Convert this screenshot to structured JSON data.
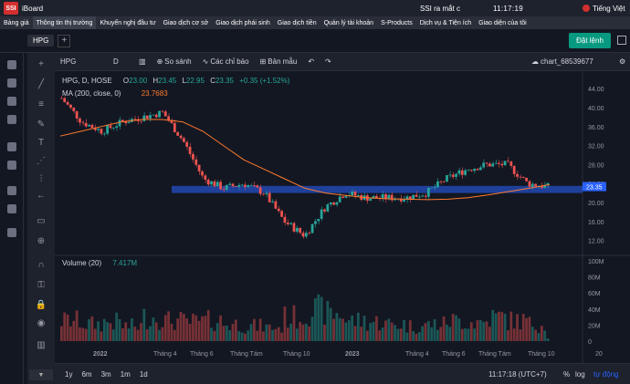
{
  "topbar": {
    "logo": "SSI",
    "app_name": "iBoard",
    "ticker": "SSI ra mắt c",
    "clock": "11:17:19",
    "language": "Tiếng Việt"
  },
  "menu": [
    "Bảng giá",
    "Thông tin thị trường",
    "Khuyến nghị đầu tư",
    "Giao dịch cơ sở",
    "Giao dịch phái sinh",
    "Giao dịch tiền",
    "Quản lý tài khoản",
    "S-Products",
    "Dịch vụ & Tiện ích",
    "Giao diện của tôi"
  ],
  "controls": {
    "tab": "HPG",
    "plus": "+",
    "order_button": "Đặt lệnh"
  },
  "chart_header": {
    "symbol": "HPG",
    "interval": "D",
    "compare": "So sánh",
    "alerts": "Các chỉ báo",
    "template": "Bản mẫu",
    "chart_name": "chart_68539677"
  },
  "legend": {
    "title": "HPG, D, HOSE",
    "o_label": "O",
    "o_value": "23.00",
    "h_label": "H",
    "h_value": "23.45",
    "l_label": "L",
    "l_value": "22.95",
    "c_label": "C",
    "c_value": "23.35",
    "change": "+0.35 (+1.52%)",
    "ma_label": "MA (200, close, 0)",
    "ma_value": "23.7683",
    "vol_label": "Volume (20)",
    "vol_value": "7.417M"
  },
  "bottom": {
    "timeframes": [
      "1y",
      "6m",
      "3m",
      "1m",
      "1d"
    ],
    "clock": "11:17:18 (UTC+7)",
    "percent": "%",
    "log": "log",
    "auto": "tự động"
  },
  "colors": {
    "up": "#26a69a",
    "down": "#ef5350",
    "ma": "#ff7b2e",
    "band": "#2962ff",
    "accent": "#089981"
  },
  "chart_data": {
    "type": "line",
    "x": [
      "2021-11",
      "2021-12",
      "2022-01",
      "2022-02",
      "2022-03",
      "2022-04",
      "2022-05",
      "2022-06",
      "2022-07",
      "2022-08",
      "2022-09",
      "2022-10",
      "2022-11",
      "2022-12",
      "2023-01",
      "2023-02",
      "2023-03",
      "2023-04",
      "2023-05",
      "2023-06",
      "2023-07",
      "2023-08",
      "2023-09",
      "2023-10",
      "2023-11"
    ],
    "series": [
      {
        "values": [
          42,
          37,
          35,
          37,
          38,
          39,
          33,
          25,
          23,
          24,
          22,
          16,
          13,
          19,
          22,
          21,
          21,
          21,
          22,
          25,
          27,
          28,
          28,
          24,
          23.35
        ]
      }
    ],
    "ma200": [
      34,
      35,
      36,
      37,
      37.5,
      37.5,
      37,
      35,
      32,
      29,
      27,
      25,
      23,
      22,
      21.5,
      21,
      20.8,
      20.7,
      20.6,
      20.7,
      21,
      21.6,
      22.3,
      23,
      23.77
    ],
    "volume_millions": [
      30,
      25,
      28,
      22,
      35,
      30,
      28,
      30,
      25,
      22,
      20,
      35,
      45,
      40,
      30,
      28,
      25,
      22,
      25,
      30,
      28,
      35,
      30,
      25,
      7.417
    ],
    "band": [
      22,
      23.5
    ],
    "y_ticks": [
      "44.00",
      "40.00",
      "36.00",
      "32.00",
      "28.00",
      "24.00",
      "20.00",
      "16.00",
      "12.00"
    ],
    "y_price_label": "23.35",
    "ylim": [
      10,
      45
    ],
    "vol_ticks": [
      "100M",
      "80M",
      "60M",
      "40M",
      "20M",
      "0"
    ],
    "x_ticks": [
      "2022",
      "Tháng 4",
      "Tháng 6",
      "Tháng Tám",
      "Tháng 10",
      "2023",
      "Tháng 4",
      "Tháng 6",
      "Tháng Tám",
      "Tháng 10",
      "20"
    ]
  }
}
